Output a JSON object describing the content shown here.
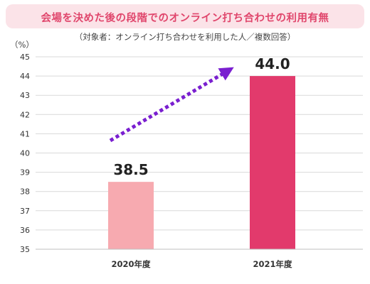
{
  "chart_data": {
    "type": "bar",
    "title": "会場を決めた後の段階でのオンライン打ち合わせの利用有無",
    "subtitle": "（対象者：オンライン打ち合わせを利用した人／複数回答）",
    "ylabel": "（%）",
    "xlabel": "",
    "categories": [
      "2020年度",
      "2021年度"
    ],
    "values": [
      38.5,
      44.0
    ],
    "data_labels": [
      "38.5",
      "44.0"
    ],
    "ylim": [
      35,
      45
    ],
    "yticks": [
      "35",
      "36",
      "37",
      "38",
      "39",
      "40",
      "41",
      "42",
      "43",
      "44",
      "45"
    ],
    "grid": true,
    "legend": "none",
    "colors": {
      "bars": [
        "#f7aab0",
        "#e23a6c"
      ],
      "arrow": "#7a1fd0",
      "title_band": "#fbe3e8",
      "title_text": "#e0466c",
      "grid": "#d9d9d9"
    },
    "annotation": "increase arrow from 2020年度 to 2021年度"
  }
}
